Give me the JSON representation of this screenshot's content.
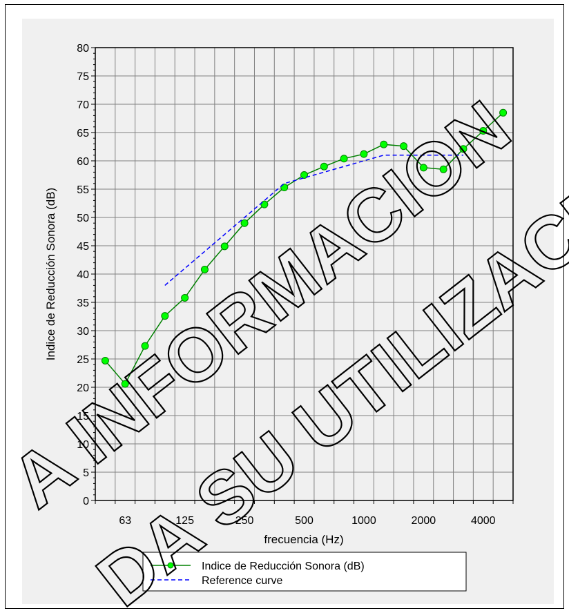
{
  "chart_data": {
    "type": "line",
    "xlabel": "frecuencia (Hz)",
    "ylabel": "Indice de Reducción Sonora (dB)",
    "ylim": [
      0,
      80
    ],
    "yticks": [
      0,
      5,
      10,
      15,
      20,
      25,
      30,
      35,
      40,
      45,
      50,
      55,
      60,
      65,
      70,
      75,
      80
    ],
    "x": [
      50,
      63,
      80,
      100,
      125,
      160,
      200,
      250,
      315,
      400,
      500,
      630,
      800,
      1000,
      1250,
      1600,
      2000,
      2500,
      3150,
      4000,
      5000
    ],
    "xtick_labels": [
      "63",
      "125",
      "250",
      "500",
      "1000",
      "2000",
      "4000"
    ],
    "grid": true,
    "legend_position": "bottom-center",
    "series": [
      {
        "name": "Indice de Reducción Sonora (dB)",
        "color": "#008000",
        "marker_color": "#00ff00",
        "style": "solid",
        "x": [
          50,
          63,
          80,
          100,
          125,
          160,
          200,
          250,
          315,
          400,
          500,
          630,
          800,
          1000,
          1250,
          1600,
          2000,
          2500,
          3150,
          4000,
          5000
        ],
        "values": [
          24.7,
          20.6,
          27.3,
          32.6,
          35.8,
          40.8,
          44.9,
          49.0,
          52.3,
          55.3,
          57.5,
          59.0,
          60.4,
          61.2,
          62.9,
          62.6,
          58.8,
          58.5,
          62.1,
          65.3,
          68.5
        ]
      },
      {
        "name": "Reference curve",
        "color": "#0000ff",
        "style": "dashed",
        "x": [
          100,
          125,
          160,
          200,
          250,
          315,
          400,
          500,
          630,
          800,
          1000,
          1250,
          1600,
          2000,
          2500,
          3150
        ],
        "values": [
          38,
          41,
          44,
          47,
          50,
          53,
          56,
          57,
          58,
          59,
          60,
          61,
          61,
          61,
          61,
          61
        ]
      }
    ]
  },
  "watermark": {
    "line1": "A INFORMACION",
    "line2": "DA SU UTILIZACIO",
    "color": "#000000"
  }
}
